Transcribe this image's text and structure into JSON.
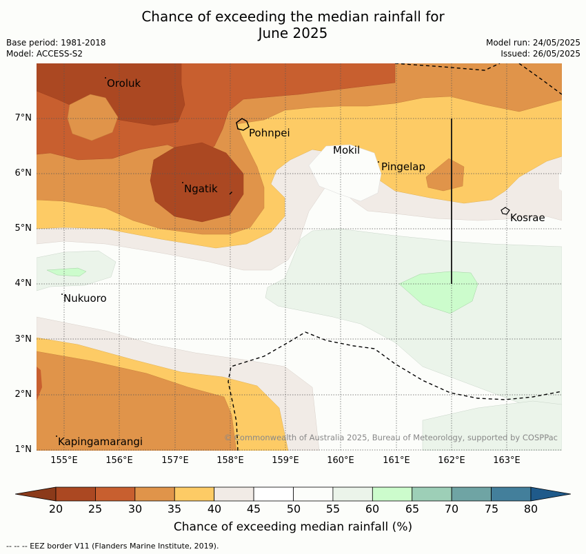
{
  "title_line1": "Chance of exceeding the median rainfall for",
  "title_line2": "June 2025",
  "base_period": "Base period: 1981-2018",
  "model": "Model: ACCESS-S2",
  "model_run": "Model run: 24/05/2025",
  "issued": "Issued: 26/05/2025",
  "lat_labels": [
    "7°N",
    "6°N",
    "5°N",
    "4°N",
    "3°N",
    "2°N",
    "1°N"
  ],
  "lon_labels": [
    "155°E",
    "156°E",
    "157°E",
    "158°E",
    "159°E",
    "160°E",
    "161°E",
    "162°E",
    "163°E"
  ],
  "places": [
    "Oroluk",
    "Pohnpei",
    "Mokil",
    "Pingelap",
    "Ngatik",
    "Kosrae",
    "Nukuoro",
    "Kapingamarangi"
  ],
  "copyright": "© Commonwealth of Australia 2025, Bureau of Meteorology, supported by COSPPac",
  "colorbar": {
    "ticks": [
      "20",
      "25",
      "30",
      "35",
      "40",
      "45",
      "50",
      "55",
      "60",
      "65",
      "70",
      "75",
      "80"
    ],
    "colors": [
      "#ab4822",
      "#c85f2f",
      "#e0944a",
      "#fdcb65",
      "#f1ebe6",
      "#ffffff",
      "#fcfdfa",
      "#ebf4ea",
      "#ccfccc",
      "#9dcfb7",
      "#6fa4a4",
      "#437f9b"
    ],
    "under_color": "#8b3a1a",
    "over_color": "#1f5a8a",
    "title": "Chance of exceeding median rainfall (%)"
  },
  "footer": "--  --  -- EEZ border V11 (Flanders Marine Institute, 2019)."
}
